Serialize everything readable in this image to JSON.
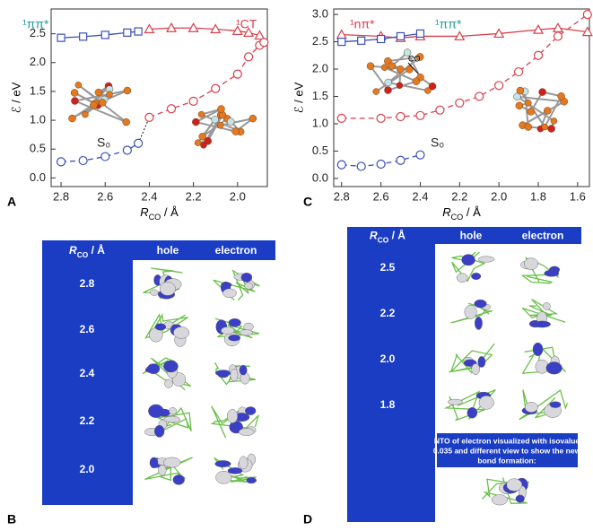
{
  "chart_data": [
    {
      "type": "line",
      "y_label": "ℰ / eV",
      "x_label": {
        "symbol": "R",
        "subscript": "CO",
        "unit": " / Å"
      },
      "xlim": [
        2.845,
        1.865
      ],
      "ylim": [
        -0.15,
        2.93
      ],
      "xticks": [
        2.8,
        2.6,
        2.4,
        2.2,
        {
          "value": 2.0,
          "label": "2.0"
        }
      ],
      "yticks": [
        {
          "value": 0,
          "label": "0.0"
        },
        0.5,
        {
          "value": 1,
          "label": "1.0"
        },
        1.5,
        {
          "value": 2,
          "label": "2.0"
        },
        2.5
      ],
      "series": [
        {
          "name": "¹ππ*",
          "color": "#3a50b8",
          "marker": "square",
          "dashed": false,
          "x": [
            2.8,
            2.7,
            2.6,
            2.5,
            2.45
          ],
          "values": [
            2.43,
            2.45,
            2.48,
            2.52,
            2.54
          ]
        },
        {
          "name": "¹CT",
          "color": "#d8404c",
          "marker": "triangle",
          "dashed": false,
          "x": [
            2.4,
            2.3,
            2.2,
            2.1,
            2.0,
            1.95,
            1.9
          ],
          "values": [
            2.58,
            2.6,
            2.6,
            2.58,
            2.55,
            2.52,
            2.47
          ]
        },
        {
          "color": "#d8404c",
          "marker": "circle",
          "dashed": true,
          "x": [
            2.4,
            2.3,
            2.2,
            2.1,
            2.0,
            1.95,
            1.9,
            1.88
          ],
          "values": [
            1.05,
            1.2,
            1.33,
            1.55,
            1.8,
            2.1,
            2.3,
            2.35
          ]
        },
        {
          "name": "S₀",
          "color": "#3a50b8",
          "marker": "circle",
          "dashed": true,
          "x": [
            2.8,
            2.7,
            2.6,
            2.5,
            2.45
          ],
          "values": [
            0.28,
            0.3,
            0.37,
            0.48,
            0.6
          ]
        }
      ]
    },
    {
      "type": "line",
      "y_label": "ℰ / eV",
      "x_label": {
        "symbol": "R",
        "subscript": "CO",
        "unit": " / Å"
      },
      "annotation": "CO",
      "xlim": [
        2.84,
        1.54
      ],
      "ylim": [
        -0.15,
        3.1
      ],
      "xticks": [
        2.8,
        2.6,
        2.4,
        2.2,
        {
          "value": 2.0,
          "label": "2.0"
        },
        1.8,
        1.6
      ],
      "yticks": [
        {
          "value": 0,
          "label": "0.0"
        },
        0.5,
        {
          "value": 1,
          "label": "1.0"
        },
        1.5,
        {
          "value": 2,
          "label": "2.0"
        },
        2.5,
        {
          "value": 3,
          "label": "3.0"
        }
      ],
      "series": [
        {
          "name": "¹nπ*",
          "color": "#d8404c",
          "marker": "triangle",
          "dashed": false,
          "x": [
            2.8,
            2.6,
            2.5,
            2.4,
            2.2,
            2.0,
            1.8,
            1.7,
            1.55
          ],
          "values": [
            2.63,
            2.6,
            2.57,
            2.6,
            2.6,
            2.65,
            2.72,
            2.75,
            2.68
          ]
        },
        {
          "name": "¹ππ*",
          "color": "#3a50b8",
          "marker": "square",
          "dashed": false,
          "x": [
            2.8,
            2.7,
            2.6,
            2.5,
            2.4
          ],
          "values": [
            2.5,
            2.52,
            2.55,
            2.6,
            2.65
          ]
        },
        {
          "color": "#d8404c",
          "marker": "circle",
          "dashed": true,
          "x": [
            2.8,
            2.6,
            2.5,
            2.4,
            2.3,
            2.2,
            2.1,
            2.0,
            1.9,
            1.8,
            1.7,
            1.55
          ],
          "values": [
            1.1,
            1.1,
            1.13,
            1.15,
            1.25,
            1.38,
            1.5,
            1.7,
            1.95,
            2.25,
            2.6,
            3.0
          ]
        },
        {
          "name": "S₀",
          "color": "#3a50b8",
          "marker": "circle",
          "dashed": true,
          "x": [
            2.8,
            2.7,
            2.6,
            2.5,
            2.4
          ],
          "values": [
            0.25,
            0.22,
            0.26,
            0.33,
            0.43
          ]
        }
      ]
    }
  ],
  "panel_labels": [
    "A",
    "B",
    "C",
    "D"
  ],
  "tables": [
    {
      "header": [
        {
          "symbol": "R",
          "subscript": "CO",
          "unit": " / Å"
        },
        "hole",
        "electron"
      ],
      "rows": [
        "2.8",
        "2.6",
        "2.4",
        "2.2",
        "2.0"
      ]
    },
    {
      "header": [
        {
          "symbol": "R",
          "subscript": "CO",
          "unit": " / Å"
        },
        "hole",
        "electron"
      ],
      "rows": [
        "2.5",
        "2.2",
        "2.0",
        "1.8"
      ],
      "note_lines": [
        "NTO of electron visualized with isovalue",
        "0.035 and different view to show the new",
        "bond formation:"
      ]
    }
  ]
}
